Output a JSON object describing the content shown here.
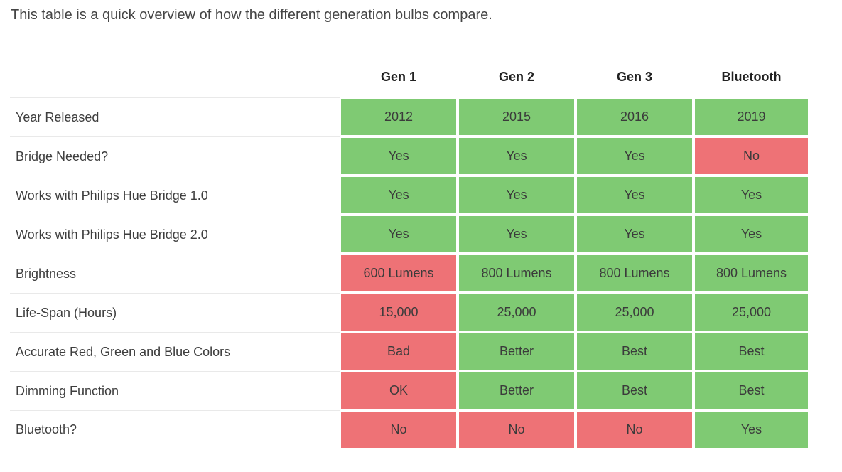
{
  "colors": {
    "good": "#7fca73",
    "bad": "#ee7276",
    "row_border": "#e9e9e9",
    "header_text": "#222222",
    "body_text": "#3e3e3e"
  },
  "chart_data": {
    "type": "table",
    "title": "This table is a quick overview of how the different generation bulbs compare.",
    "columns": [
      "Gen 1",
      "Gen 2",
      "Gen 3",
      "Bluetooth"
    ],
    "legend": {
      "good": "green highlight = favorable",
      "bad": "red highlight = unfavorable"
    },
    "rows": [
      {
        "label": "Year Released",
        "cells": [
          {
            "text": "2012",
            "status": "good"
          },
          {
            "text": "2015",
            "status": "good"
          },
          {
            "text": "2016",
            "status": "good"
          },
          {
            "text": "2019",
            "status": "good"
          }
        ]
      },
      {
        "label": "Bridge Needed?",
        "cells": [
          {
            "text": "Yes",
            "status": "good"
          },
          {
            "text": "Yes",
            "status": "good"
          },
          {
            "text": "Yes",
            "status": "good"
          },
          {
            "text": "No",
            "status": "bad"
          }
        ]
      },
      {
        "label": "Works with Philips Hue Bridge 1.0",
        "cells": [
          {
            "text": "Yes",
            "status": "good"
          },
          {
            "text": "Yes",
            "status": "good"
          },
          {
            "text": "Yes",
            "status": "good"
          },
          {
            "text": "Yes",
            "status": "good"
          }
        ]
      },
      {
        "label": "Works with Philips Hue Bridge 2.0",
        "cells": [
          {
            "text": "Yes",
            "status": "good"
          },
          {
            "text": "Yes",
            "status": "good"
          },
          {
            "text": "Yes",
            "status": "good"
          },
          {
            "text": "Yes",
            "status": "good"
          }
        ]
      },
      {
        "label": "Brightness",
        "cells": [
          {
            "text": "600 Lumens",
            "status": "bad"
          },
          {
            "text": "800 Lumens",
            "status": "good"
          },
          {
            "text": "800 Lumens",
            "status": "good"
          },
          {
            "text": "800 Lumens",
            "status": "good"
          }
        ]
      },
      {
        "label": "Life-Span (Hours)",
        "cells": [
          {
            "text": "15,000",
            "status": "bad"
          },
          {
            "text": "25,000",
            "status": "good"
          },
          {
            "text": "25,000",
            "status": "good"
          },
          {
            "text": "25,000",
            "status": "good"
          }
        ]
      },
      {
        "label": "Accurate Red, Green and Blue Colors",
        "cells": [
          {
            "text": "Bad",
            "status": "bad"
          },
          {
            "text": "Better",
            "status": "good"
          },
          {
            "text": "Best",
            "status": "good"
          },
          {
            "text": "Best",
            "status": "good"
          }
        ]
      },
      {
        "label": "Dimming Function",
        "cells": [
          {
            "text": "OK",
            "status": "bad"
          },
          {
            "text": "Better",
            "status": "good"
          },
          {
            "text": "Best",
            "status": "good"
          },
          {
            "text": "Best",
            "status": "good"
          }
        ]
      },
      {
        "label": "Bluetooth?",
        "cells": [
          {
            "text": "No",
            "status": "bad"
          },
          {
            "text": "No",
            "status": "bad"
          },
          {
            "text": "No",
            "status": "bad"
          },
          {
            "text": "Yes",
            "status": "good"
          }
        ]
      }
    ]
  }
}
